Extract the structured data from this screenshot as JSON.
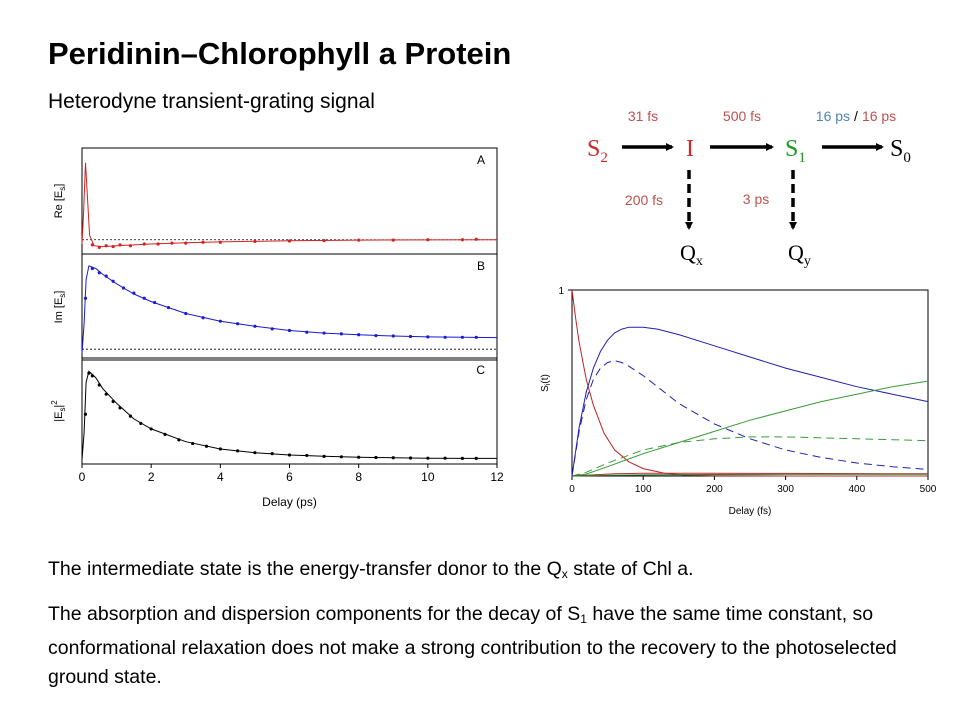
{
  "slide": {
    "title": "Peridinin–Chlorophyll a Protein",
    "subtitle": "Heterodyne transient-grating signal",
    "paragraph1_pre": "The intermediate state is the energy-transfer donor to the Q",
    "paragraph1_sub": "x",
    "paragraph1_post": " state of Chl a.",
    "paragraph2_pre": "The absorption and dispersion components for the decay of S",
    "paragraph2_sub": "1",
    "paragraph2_post": " have the same time constant, so conformational relaxation does not make a strong contribution to the recovery to the photoselected ground state."
  },
  "scheme": {
    "states": [
      {
        "base": "S",
        "sub": "2",
        "color": "#d0262c"
      },
      {
        "base": "I",
        "sub": "",
        "color": "#d0262c"
      },
      {
        "base": "S",
        "sub": "1",
        "color": "#1a9a1a"
      },
      {
        "base": "S",
        "sub": "0",
        "color": "#000000"
      },
      {
        "base": "Q",
        "sub": "x",
        "color": "#000000"
      },
      {
        "base": "Q",
        "sub": "y",
        "color": "#000000"
      }
    ],
    "rates": {
      "s2_to_i": "31 fs",
      "i_to_s1": "500 fs",
      "s1_to_s0_a": "16 ps",
      "s1_to_s0_sep": "/",
      "s1_to_s0_b": "16 ps",
      "i_to_qx": "200 fs",
      "s1_to_qy": "3 ps"
    },
    "colors": {
      "rate_red": "#c0504d",
      "rate_blue": "#4f81bd",
      "arrow": "#000000"
    }
  },
  "chart_data": [
    {
      "type": "scatter",
      "xlabel": "Delay (ps)",
      "xlim": [
        0,
        12
      ],
      "xticks": [
        0,
        2,
        4,
        6,
        8,
        10,
        12
      ],
      "panels": [
        {
          "letter": "A",
          "ylabel": "Re [E",
          "ylabel_sub": "s",
          "ylabel_post": "]",
          "color": "#d42020",
          "baseline": 0,
          "ylim": [
            -0.12,
            1.0
          ],
          "fit": [
            [
              0,
              -0.05
            ],
            [
              0.05,
              0.35
            ],
            [
              0.1,
              0.9
            ],
            [
              0.15,
              0.55
            ],
            [
              0.22,
              0.05
            ],
            [
              0.35,
              -0.07
            ],
            [
              0.6,
              -0.08
            ],
            [
              1,
              -0.07
            ],
            [
              2,
              -0.05
            ],
            [
              3,
              -0.035
            ],
            [
              4,
              -0.025
            ],
            [
              6,
              -0.012
            ],
            [
              8,
              -0.005
            ],
            [
              10,
              -0.002
            ],
            [
              12,
              0
            ]
          ],
          "points": [
            [
              0.3,
              -0.06
            ],
            [
              0.5,
              -0.09
            ],
            [
              0.7,
              -0.07
            ],
            [
              0.9,
              -0.08
            ],
            [
              1.1,
              -0.06
            ],
            [
              1.4,
              -0.07
            ],
            [
              1.8,
              -0.05
            ],
            [
              2.2,
              -0.05
            ],
            [
              2.6,
              -0.04
            ],
            [
              3,
              -0.04
            ],
            [
              3.5,
              -0.03
            ],
            [
              4,
              -0.03
            ],
            [
              5,
              -0.02
            ],
            [
              6,
              -0.015
            ],
            [
              7,
              -0.01
            ],
            [
              8,
              -0.005
            ],
            [
              9,
              -0.005
            ],
            [
              10,
              0
            ],
            [
              11,
              0
            ],
            [
              11.4,
              0.005
            ]
          ]
        },
        {
          "letter": "B",
          "ylabel": "Im [E",
          "ylabel_sub": "s",
          "ylabel_post": "]",
          "color": "#1a1ad4",
          "baseline": 0,
          "ylim": [
            -0.08,
            1.05
          ],
          "fit": [
            [
              0,
              -0.05
            ],
            [
              0.06,
              0.3
            ],
            [
              0.12,
              0.82
            ],
            [
              0.2,
              0.98
            ],
            [
              0.4,
              0.95
            ],
            [
              0.6,
              0.88
            ],
            [
              1,
              0.77
            ],
            [
              1.5,
              0.65
            ],
            [
              2,
              0.56
            ],
            [
              3,
              0.42
            ],
            [
              4,
              0.33
            ],
            [
              5,
              0.27
            ],
            [
              6,
              0.22
            ],
            [
              7,
              0.19
            ],
            [
              8,
              0.17
            ],
            [
              9,
              0.155
            ],
            [
              10,
              0.145
            ],
            [
              11,
              0.14
            ],
            [
              12,
              0.137
            ]
          ],
          "points": [
            [
              0.1,
              0.6
            ],
            [
              0.3,
              0.95
            ],
            [
              0.5,
              0.9
            ],
            [
              0.7,
              0.86
            ],
            [
              0.9,
              0.8
            ],
            [
              1.2,
              0.72
            ],
            [
              1.5,
              0.66
            ],
            [
              1.8,
              0.6
            ],
            [
              2.1,
              0.55
            ],
            [
              2.5,
              0.49
            ],
            [
              3,
              0.42
            ],
            [
              3.5,
              0.37
            ],
            [
              4,
              0.33
            ],
            [
              4.5,
              0.3
            ],
            [
              5,
              0.27
            ],
            [
              5.5,
              0.24
            ],
            [
              6,
              0.22
            ],
            [
              6.5,
              0.2
            ],
            [
              7,
              0.19
            ],
            [
              7.5,
              0.18
            ],
            [
              8,
              0.17
            ],
            [
              8.5,
              0.16
            ],
            [
              9,
              0.155
            ],
            [
              9.5,
              0.15
            ],
            [
              10,
              0.145
            ],
            [
              10.5,
              0.14
            ],
            [
              11,
              0.14
            ],
            [
              11.4,
              0.14
            ]
          ]
        },
        {
          "letter": "C",
          "ylabel": "|E",
          "ylabel_sub": "s",
          "ylabel_post": "|",
          "ylabel_sup": "2",
          "color": "#000000",
          "baseline": null,
          "ylim": [
            0,
            1.05
          ],
          "fit": [
            [
              0,
              0
            ],
            [
              0.06,
              0.3
            ],
            [
              0.12,
              0.85
            ],
            [
              0.2,
              0.97
            ],
            [
              0.4,
              0.9
            ],
            [
              0.6,
              0.78
            ],
            [
              1,
              0.62
            ],
            [
              1.5,
              0.45
            ],
            [
              2,
              0.34
            ],
            [
              3,
              0.2
            ],
            [
              4,
              0.12
            ],
            [
              5,
              0.08
            ],
            [
              6,
              0.055
            ],
            [
              7,
              0.04
            ],
            [
              8,
              0.03
            ],
            [
              9,
              0.025
            ],
            [
              10,
              0.02
            ],
            [
              11,
              0.018
            ],
            [
              12,
              0.017
            ]
          ],
          "points": [
            [
              0.1,
              0.5
            ],
            [
              0.2,
              0.95
            ],
            [
              0.3,
              0.92
            ],
            [
              0.5,
              0.82
            ],
            [
              0.7,
              0.72
            ],
            [
              0.9,
              0.64
            ],
            [
              1.1,
              0.57
            ],
            [
              1.4,
              0.48
            ],
            [
              1.7,
              0.4
            ],
            [
              2,
              0.34
            ],
            [
              2.4,
              0.28
            ],
            [
              2.8,
              0.22
            ],
            [
              3.2,
              0.18
            ],
            [
              3.6,
              0.15
            ],
            [
              4,
              0.12
            ],
            [
              4.5,
              0.1
            ],
            [
              5,
              0.08
            ],
            [
              5.5,
              0.07
            ],
            [
              6,
              0.055
            ],
            [
              6.5,
              0.05
            ],
            [
              7,
              0.04
            ],
            [
              7.5,
              0.035
            ],
            [
              8,
              0.03
            ],
            [
              8.5,
              0.028
            ],
            [
              9,
              0.025
            ],
            [
              9.5,
              0.022
            ],
            [
              10,
              0.02
            ],
            [
              10.5,
              0.02
            ],
            [
              11,
              0.018
            ],
            [
              11.4,
              0.018
            ]
          ]
        }
      ]
    },
    {
      "type": "line",
      "xlabel": "Delay (fs)",
      "ylabel": "S",
      "ylabel_sub": "i",
      "ylabel_post": "(t)",
      "xlim": [
        0,
        500
      ],
      "ylim": [
        0,
        1
      ],
      "xticks": [
        0,
        100,
        200,
        300,
        400,
        500
      ],
      "yticks": [
        1
      ],
      "series": [
        {
          "color": "#c02020",
          "dashed": false,
          "points": [
            [
              0,
              1
            ],
            [
              5,
              0.85
            ],
            [
              10,
              0.72
            ],
            [
              20,
              0.52
            ],
            [
              30,
              0.38
            ],
            [
              45,
              0.23
            ],
            [
              60,
              0.14
            ],
            [
              80,
              0.076
            ],
            [
              100,
              0.04
            ],
            [
              130,
              0.015
            ],
            [
              160,
              0.005
            ],
            [
              200,
              0.001
            ],
            [
              300,
              0
            ],
            [
              500,
              0
            ]
          ]
        },
        {
          "color": "#2020b0",
          "dashed": false,
          "points": [
            [
              0,
              0
            ],
            [
              10,
              0.26
            ],
            [
              20,
              0.45
            ],
            [
              30,
              0.58
            ],
            [
              40,
              0.67
            ],
            [
              50,
              0.73
            ],
            [
              60,
              0.77
            ],
            [
              70,
              0.79
            ],
            [
              80,
              0.8
            ],
            [
              100,
              0.8
            ],
            [
              120,
              0.79
            ],
            [
              150,
              0.76
            ],
            [
              200,
              0.7
            ],
            [
              250,
              0.64
            ],
            [
              300,
              0.58
            ],
            [
              350,
              0.53
            ],
            [
              400,
              0.48
            ],
            [
              450,
              0.44
            ],
            [
              500,
              0.4
            ]
          ]
        },
        {
          "color": "#2020b0",
          "dashed": true,
          "points": [
            [
              0,
              0
            ],
            [
              10,
              0.24
            ],
            [
              20,
              0.41
            ],
            [
              30,
              0.52
            ],
            [
              40,
              0.58
            ],
            [
              50,
              0.61
            ],
            [
              60,
              0.62
            ],
            [
              70,
              0.61
            ],
            [
              80,
              0.59
            ],
            [
              100,
              0.54
            ],
            [
              120,
              0.48
            ],
            [
              150,
              0.39
            ],
            [
              200,
              0.28
            ],
            [
              250,
              0.2
            ],
            [
              300,
              0.14
            ],
            [
              350,
              0.1
            ],
            [
              400,
              0.07
            ],
            [
              450,
              0.05
            ],
            [
              500,
              0.035
            ]
          ]
        },
        {
          "color": "#3a9a3a",
          "dashed": false,
          "points": [
            [
              0,
              0
            ],
            [
              20,
              0.01
            ],
            [
              50,
              0.05
            ],
            [
              100,
              0.12
            ],
            [
              150,
              0.18
            ],
            [
              200,
              0.24
            ],
            [
              250,
              0.3
            ],
            [
              300,
              0.35
            ],
            [
              350,
              0.4
            ],
            [
              400,
              0.44
            ],
            [
              450,
              0.48
            ],
            [
              500,
              0.51
            ]
          ]
        },
        {
          "color": "#3a9a3a",
          "dashed": true,
          "points": [
            [
              0,
              0
            ],
            [
              20,
              0.02
            ],
            [
              50,
              0.07
            ],
            [
              100,
              0.14
            ],
            [
              150,
              0.18
            ],
            [
              200,
              0.2
            ],
            [
              250,
              0.21
            ],
            [
              300,
              0.21
            ],
            [
              350,
              0.205
            ],
            [
              400,
              0.2
            ],
            [
              450,
              0.195
            ],
            [
              500,
              0.19
            ]
          ]
        },
        {
          "color": "#b03030",
          "dashed": false,
          "points": [
            [
              0,
              0
            ],
            [
              20,
              0.004
            ],
            [
              60,
              0.012
            ],
            [
              100,
              0.015
            ],
            [
              200,
              0.015
            ],
            [
              300,
              0.014
            ],
            [
              400,
              0.013
            ],
            [
              500,
              0.012
            ]
          ]
        },
        {
          "color": "#2a7a2a",
          "dashed": false,
          "points": [
            [
              0,
              0
            ],
            [
              50,
              0.003
            ],
            [
              100,
              0.006
            ],
            [
              200,
              0.008
            ],
            [
              300,
              0.009
            ],
            [
              400,
              0.009
            ],
            [
              500,
              0.009
            ]
          ]
        }
      ]
    }
  ]
}
